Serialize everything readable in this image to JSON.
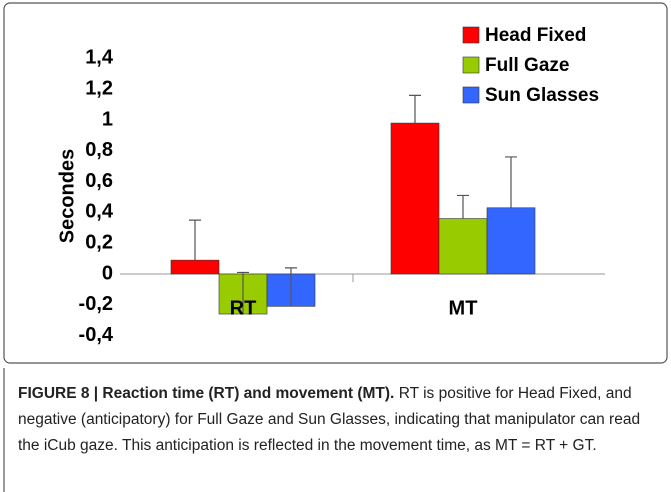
{
  "chart_data": {
    "type": "bar",
    "ylabel": "Secondes",
    "categories": [
      "RT",
      "MT"
    ],
    "series": [
      {
        "name": "Head Fixed",
        "color": "#ff0000",
        "values": [
          0.09,
          0.98
        ],
        "errors": [
          0.26,
          0.18
        ]
      },
      {
        "name": "Full Gaze",
        "color": "#99cc00",
        "values": [
          -0.26,
          0.36
        ],
        "errors": [
          0.27,
          0.15
        ]
      },
      {
        "name": "Sun Glasses",
        "color": "#3366ff",
        "values": [
          -0.21,
          0.43
        ],
        "errors": [
          0.25,
          0.33
        ]
      }
    ],
    "ylim": [
      -0.4,
      1.4
    ],
    "yticks": [
      {
        "value": 1.4,
        "label": "1,4"
      },
      {
        "value": 1.2,
        "label": "1,2"
      },
      1,
      {
        "value": 0.8,
        "label": "0,8"
      },
      {
        "value": 0.6,
        "label": "0,6"
      },
      {
        "value": 0.4,
        "label": "0,4"
      },
      {
        "value": 0.2,
        "label": "0,2"
      },
      0,
      {
        "value": -0.2,
        "label": "-0,2"
      },
      {
        "value": -0.4,
        "label": "-0,4"
      }
    ],
    "legend": "top-right",
    "grid": false
  },
  "caption": {
    "title": "FIGURE 8 | Reaction time (RT) and movement (MT).",
    "text": "RT is positive for Head Fixed, and negative (anticipatory) for Full Gaze and Sun Glasses, indicating that manipulator can read the iCub gaze. This anticipation is reflected in the movement time, as MT = RT + GT."
  }
}
